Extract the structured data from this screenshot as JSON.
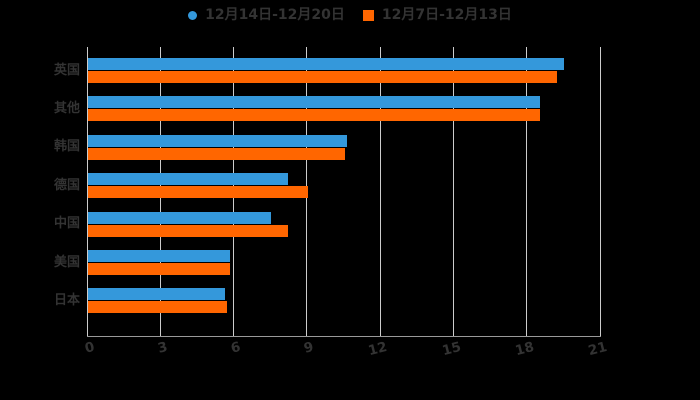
{
  "legend": {
    "items": [
      {
        "label": "12月14日-12月20日",
        "marker": "circle",
        "color": "#3498db"
      },
      {
        "label": "12月7日-12月13日",
        "marker": "square",
        "color": "#ff6600"
      }
    ]
  },
  "chart_data": {
    "type": "bar",
    "orientation": "horizontal",
    "title": "",
    "xlabel": "",
    "ylabel": "",
    "categories": [
      "英国",
      "其他",
      "韩国",
      "德国",
      "中国",
      "美国",
      "日本"
    ],
    "series": [
      {
        "name": "12月14日-12月20日",
        "color": "#3498db",
        "values": [
          19.5,
          18.5,
          10.6,
          8.2,
          7.5,
          5.8,
          5.6
        ]
      },
      {
        "name": "12月7日-12月13日",
        "color": "#ff6600",
        "values": [
          19.2,
          18.5,
          10.5,
          9.0,
          8.2,
          5.8,
          5.7
        ]
      }
    ],
    "xlim": [
      0,
      21
    ],
    "xticks": [
      0,
      3,
      6,
      9,
      12,
      15,
      18,
      21
    ],
    "grid": "vertical",
    "legend_position": "top-center",
    "colors": {
      "grid": "#cccccc",
      "axis": "#999999",
      "text": "#333333",
      "background": "#000000"
    }
  }
}
